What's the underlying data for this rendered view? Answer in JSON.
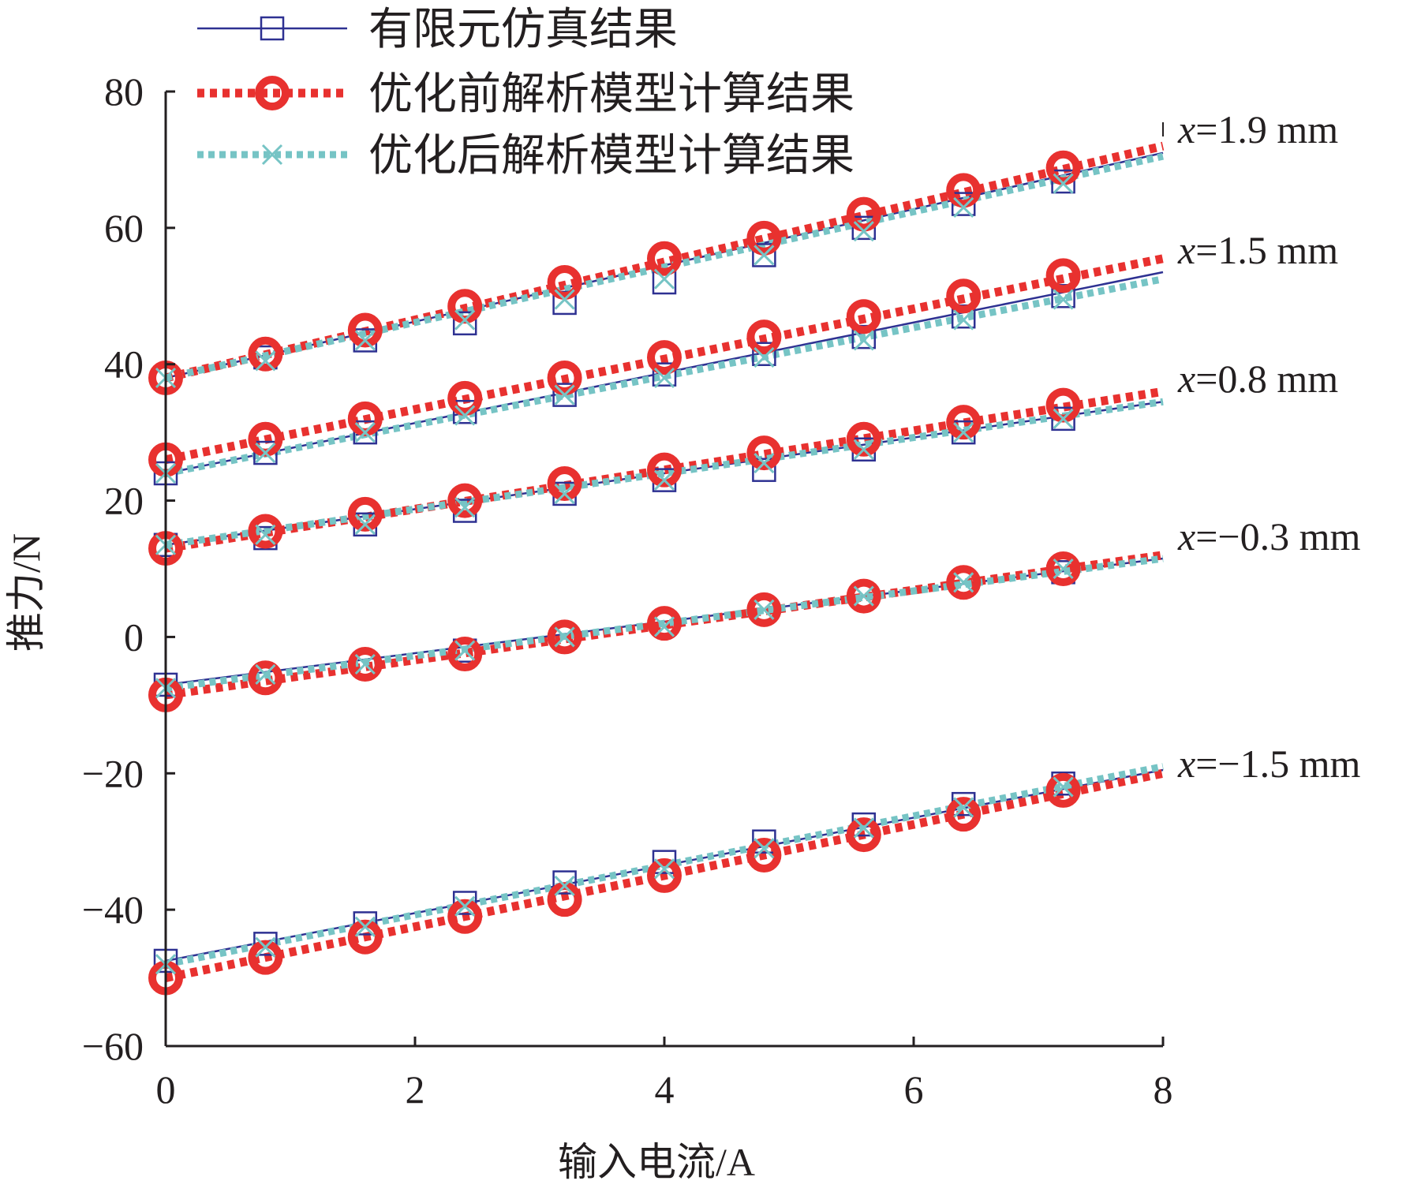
{
  "chart_data": {
    "type": "line",
    "xlabel": "输入电流/A",
    "ylabel": "推力/N",
    "xlim": [
      0,
      8
    ],
    "ylim": [
      -60,
      80
    ],
    "xticks": [
      0,
      2,
      4,
      6,
      8
    ],
    "yticks": [
      -60,
      -40,
      -20,
      0,
      20,
      40,
      60,
      80
    ],
    "grid": false,
    "legend_position": "top-left",
    "legend": [
      {
        "name": "有限元仿真结果",
        "color": "#2e3192",
        "style": "solid",
        "marker": "square"
      },
      {
        "name": "优化前解析模型计算结果",
        "color": "#e8312f",
        "style": "dotted",
        "marker": "circle"
      },
      {
        "name": "优化后解析模型计算结果",
        "color": "#76c4c5",
        "style": "dotted",
        "marker": "x"
      }
    ],
    "marker_x": [
      0,
      0.8,
      1.6,
      2.4,
      3.2,
      4.0,
      4.8,
      5.6,
      6.4,
      7.2
    ],
    "line_x": [
      0,
      8
    ],
    "groups": [
      {
        "label_prefix": "x",
        "label_value": "=1.9 mm",
        "fem": {
          "markers": [
            38,
            41,
            43.5,
            46,
            49,
            52,
            56,
            60,
            63.5,
            66.8
          ],
          "end": [
            38,
            71
          ]
        },
        "before": {
          "markers": [
            38,
            41.5,
            45,
            48.5,
            52,
            55.5,
            58.5,
            62,
            65.5,
            68.8
          ],
          "end": [
            38,
            72
          ]
        },
        "after": {
          "markers": [
            38,
            40.5,
            43.5,
            46.5,
            49.5,
            52.5,
            56,
            59.5,
            63,
            66.5
          ],
          "end": [
            38,
            70.5
          ]
        }
      },
      {
        "label_prefix": "x",
        "label_value": "=1.5 mm",
        "fem": {
          "markers": [
            24,
            27,
            30,
            33,
            35.5,
            38.5,
            41.5,
            44,
            47,
            50
          ],
          "end": [
            24,
            53.5
          ]
        },
        "before": {
          "markers": [
            26,
            29,
            32,
            35,
            38,
            41,
            44,
            47,
            50,
            53
          ],
          "end": [
            26,
            55.5
          ]
        },
        "after": {
          "markers": [
            24,
            27,
            30,
            32.5,
            35.5,
            38,
            41,
            43.5,
            46.5,
            49.5
          ],
          "end": [
            24,
            52.5
          ]
        }
      },
      {
        "label_prefix": "x",
        "label_value": "=0.8 mm",
        "fem": {
          "markers": [
            13.5,
            14.5,
            16.5,
            18.5,
            21,
            23,
            24.5,
            27.5,
            30,
            32
          ],
          "end": [
            13.5,
            34.5
          ]
        },
        "before": {
          "markers": [
            13,
            15.5,
            18,
            20,
            22.5,
            24.5,
            27,
            29,
            31.5,
            34
          ],
          "end": [
            13,
            36
          ]
        },
        "after": {
          "markers": [
            13.5,
            15,
            16.5,
            19,
            21,
            23,
            25.5,
            27.5,
            30,
            32
          ],
          "end": [
            13.5,
            34.5
          ]
        }
      },
      {
        "label_prefix": "x",
        "label_value": "=−0.3 mm",
        "fem": {
          "markers": [
            -7,
            -6,
            -4,
            -2,
            0,
            2,
            4,
            6,
            8,
            9.5
          ],
          "end": [
            -7,
            11.5
          ]
        },
        "before": {
          "markers": [
            -8.5,
            -6,
            -4,
            -2.5,
            0,
            2,
            4,
            6,
            8,
            10
          ],
          "end": [
            -8.5,
            12
          ]
        },
        "after": {
          "markers": [
            -7.5,
            -5.5,
            -4,
            -2,
            0,
            1.5,
            4,
            6,
            8,
            10
          ],
          "end": [
            -7.5,
            11.5
          ]
        }
      },
      {
        "label_prefix": "x",
        "label_value": "=−1.5 mm",
        "fem": {
          "markers": [
            -47.5,
            -45,
            -42,
            -39,
            -36,
            -33,
            -30,
            -27.5,
            -24.5,
            -21.5
          ],
          "end": [
            -47.5,
            -19.5
          ]
        },
        "before": {
          "markers": [
            -50,
            -47,
            -44,
            -41,
            -38.5,
            -35,
            -32,
            -29,
            -26,
            -22.5
          ],
          "end": [
            -50,
            -20
          ]
        },
        "after": {
          "markers": [
            -48,
            -45.5,
            -42.5,
            -39.5,
            -36.5,
            -34,
            -31,
            -28,
            -25,
            -22
          ],
          "end": [
            -48,
            -19
          ]
        }
      }
    ]
  }
}
